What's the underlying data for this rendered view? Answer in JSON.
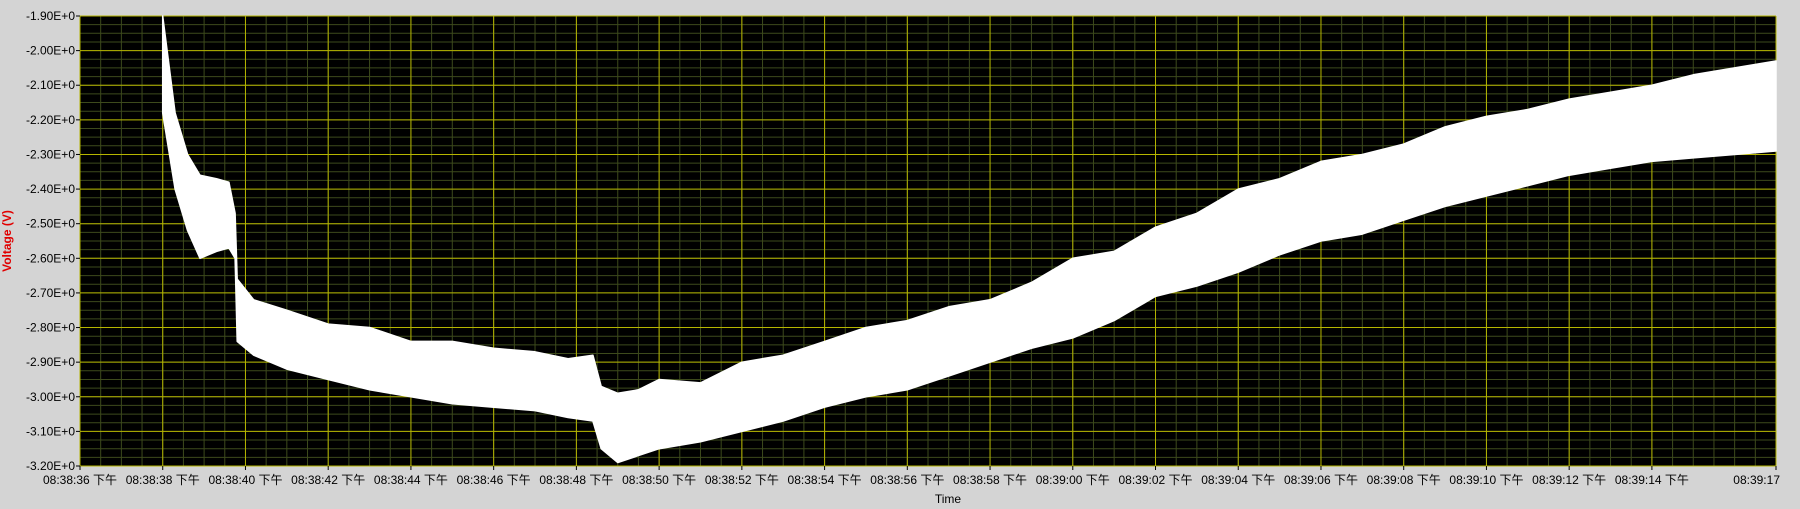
{
  "chart_data": {
    "type": "line",
    "xlabel": "Time",
    "ylabel": "Voltage (V)",
    "colors": {
      "background": "#000000",
      "grid_major": "#b5b500",
      "grid_minor": "#3d4a1c",
      "trace": "#ffffff",
      "ylabel": "#e00000",
      "frame": "#d4d4d4"
    },
    "grid": true,
    "xlim": [
      0,
      41
    ],
    "ylim": [
      -3.2,
      -1.9
    ],
    "ytick_values": [
      -1.9,
      -2.0,
      -2.1,
      -2.2,
      -2.3,
      -2.4,
      -2.5,
      -2.6,
      -2.7,
      -2.8,
      -2.9,
      -3.0,
      -3.1,
      -3.2
    ],
    "ytick_labels": [
      "-1.90E+0",
      "-2.00E+0",
      "-2.10E+0",
      "-2.20E+0",
      "-2.30E+0",
      "-2.40E+0",
      "-2.50E+0",
      "-2.60E+0",
      "-2.70E+0",
      "-2.80E+0",
      "-2.90E+0",
      "-3.00E+0",
      "-3.10E+0",
      "-3.20E+0"
    ],
    "xtick_values": [
      0,
      2,
      4,
      6,
      8,
      10,
      12,
      14,
      16,
      18,
      20,
      22,
      24,
      26,
      28,
      30,
      32,
      34,
      36,
      38,
      41
    ],
    "xtick_labels": [
      "08:38:36 下午",
      "08:38:38 下午",
      "08:38:40 下午",
      "08:38:42 下午",
      "08:38:44 下午",
      "08:38:46 下午",
      "08:38:48 下午",
      "08:38:50 下午",
      "08:38:52 下午",
      "08:38:54 下午",
      "08:38:56 下午",
      "08:38:58 下午",
      "08:39:00 下午",
      "08:39:02 下午",
      "08:39:04 下午",
      "08:39:06 下午",
      "08:39:08 下午",
      "08:39:10 下午",
      "08:39:12 下午",
      "08:39:14 下午",
      "08:39:17"
    ],
    "series": [
      {
        "x": [
          2.0,
          2.3,
          2.6,
          2.9,
          3.3,
          3.6,
          3.75,
          3.8,
          4.2,
          5.0,
          6.0,
          7.0,
          8.0,
          9.0,
          10.0,
          11.0,
          11.8,
          12.4,
          12.6,
          13.0,
          13.5,
          14.0,
          15.0,
          16.0,
          17.0,
          18.0,
          19.0,
          20.0,
          21.0,
          22.0,
          23.0,
          24.0,
          25.0,
          26.0,
          27.0,
          28.0,
          29.0,
          30.0,
          31.0,
          32.0,
          33.0,
          34.0,
          35.0,
          36.0,
          37.0,
          38.0,
          39.0,
          40.0,
          41.0
        ],
        "y_upper": [
          -1.9,
          -2.18,
          -2.3,
          -2.36,
          -2.37,
          -2.38,
          -2.47,
          -2.66,
          -2.72,
          -2.75,
          -2.79,
          -2.8,
          -2.84,
          -2.84,
          -2.86,
          -2.87,
          -2.89,
          -2.88,
          -2.97,
          -2.99,
          -2.98,
          -2.95,
          -2.96,
          -2.9,
          -2.88,
          -2.84,
          -2.8,
          -2.78,
          -2.74,
          -2.72,
          -2.67,
          -2.6,
          -2.58,
          -2.51,
          -2.47,
          -2.4,
          -2.37,
          -2.32,
          -2.3,
          -2.27,
          -2.22,
          -2.19,
          -2.17,
          -2.14,
          -2.12,
          -2.1,
          -2.07,
          -2.05,
          -2.03
        ],
        "y_lower": [
          -2.18,
          -2.4,
          -2.52,
          -2.6,
          -2.58,
          -2.57,
          -2.6,
          -2.84,
          -2.88,
          -2.92,
          -2.95,
          -2.98,
          -3.0,
          -3.02,
          -3.03,
          -3.04,
          -3.06,
          -3.07,
          -3.15,
          -3.19,
          -3.17,
          -3.15,
          -3.13,
          -3.1,
          -3.07,
          -3.03,
          -3.0,
          -2.98,
          -2.94,
          -2.9,
          -2.86,
          -2.83,
          -2.78,
          -2.71,
          -2.68,
          -2.64,
          -2.59,
          -2.55,
          -2.53,
          -2.49,
          -2.45,
          -2.42,
          -2.39,
          -2.36,
          -2.34,
          -2.32,
          -2.31,
          -2.3,
          -2.29
        ]
      }
    ]
  }
}
